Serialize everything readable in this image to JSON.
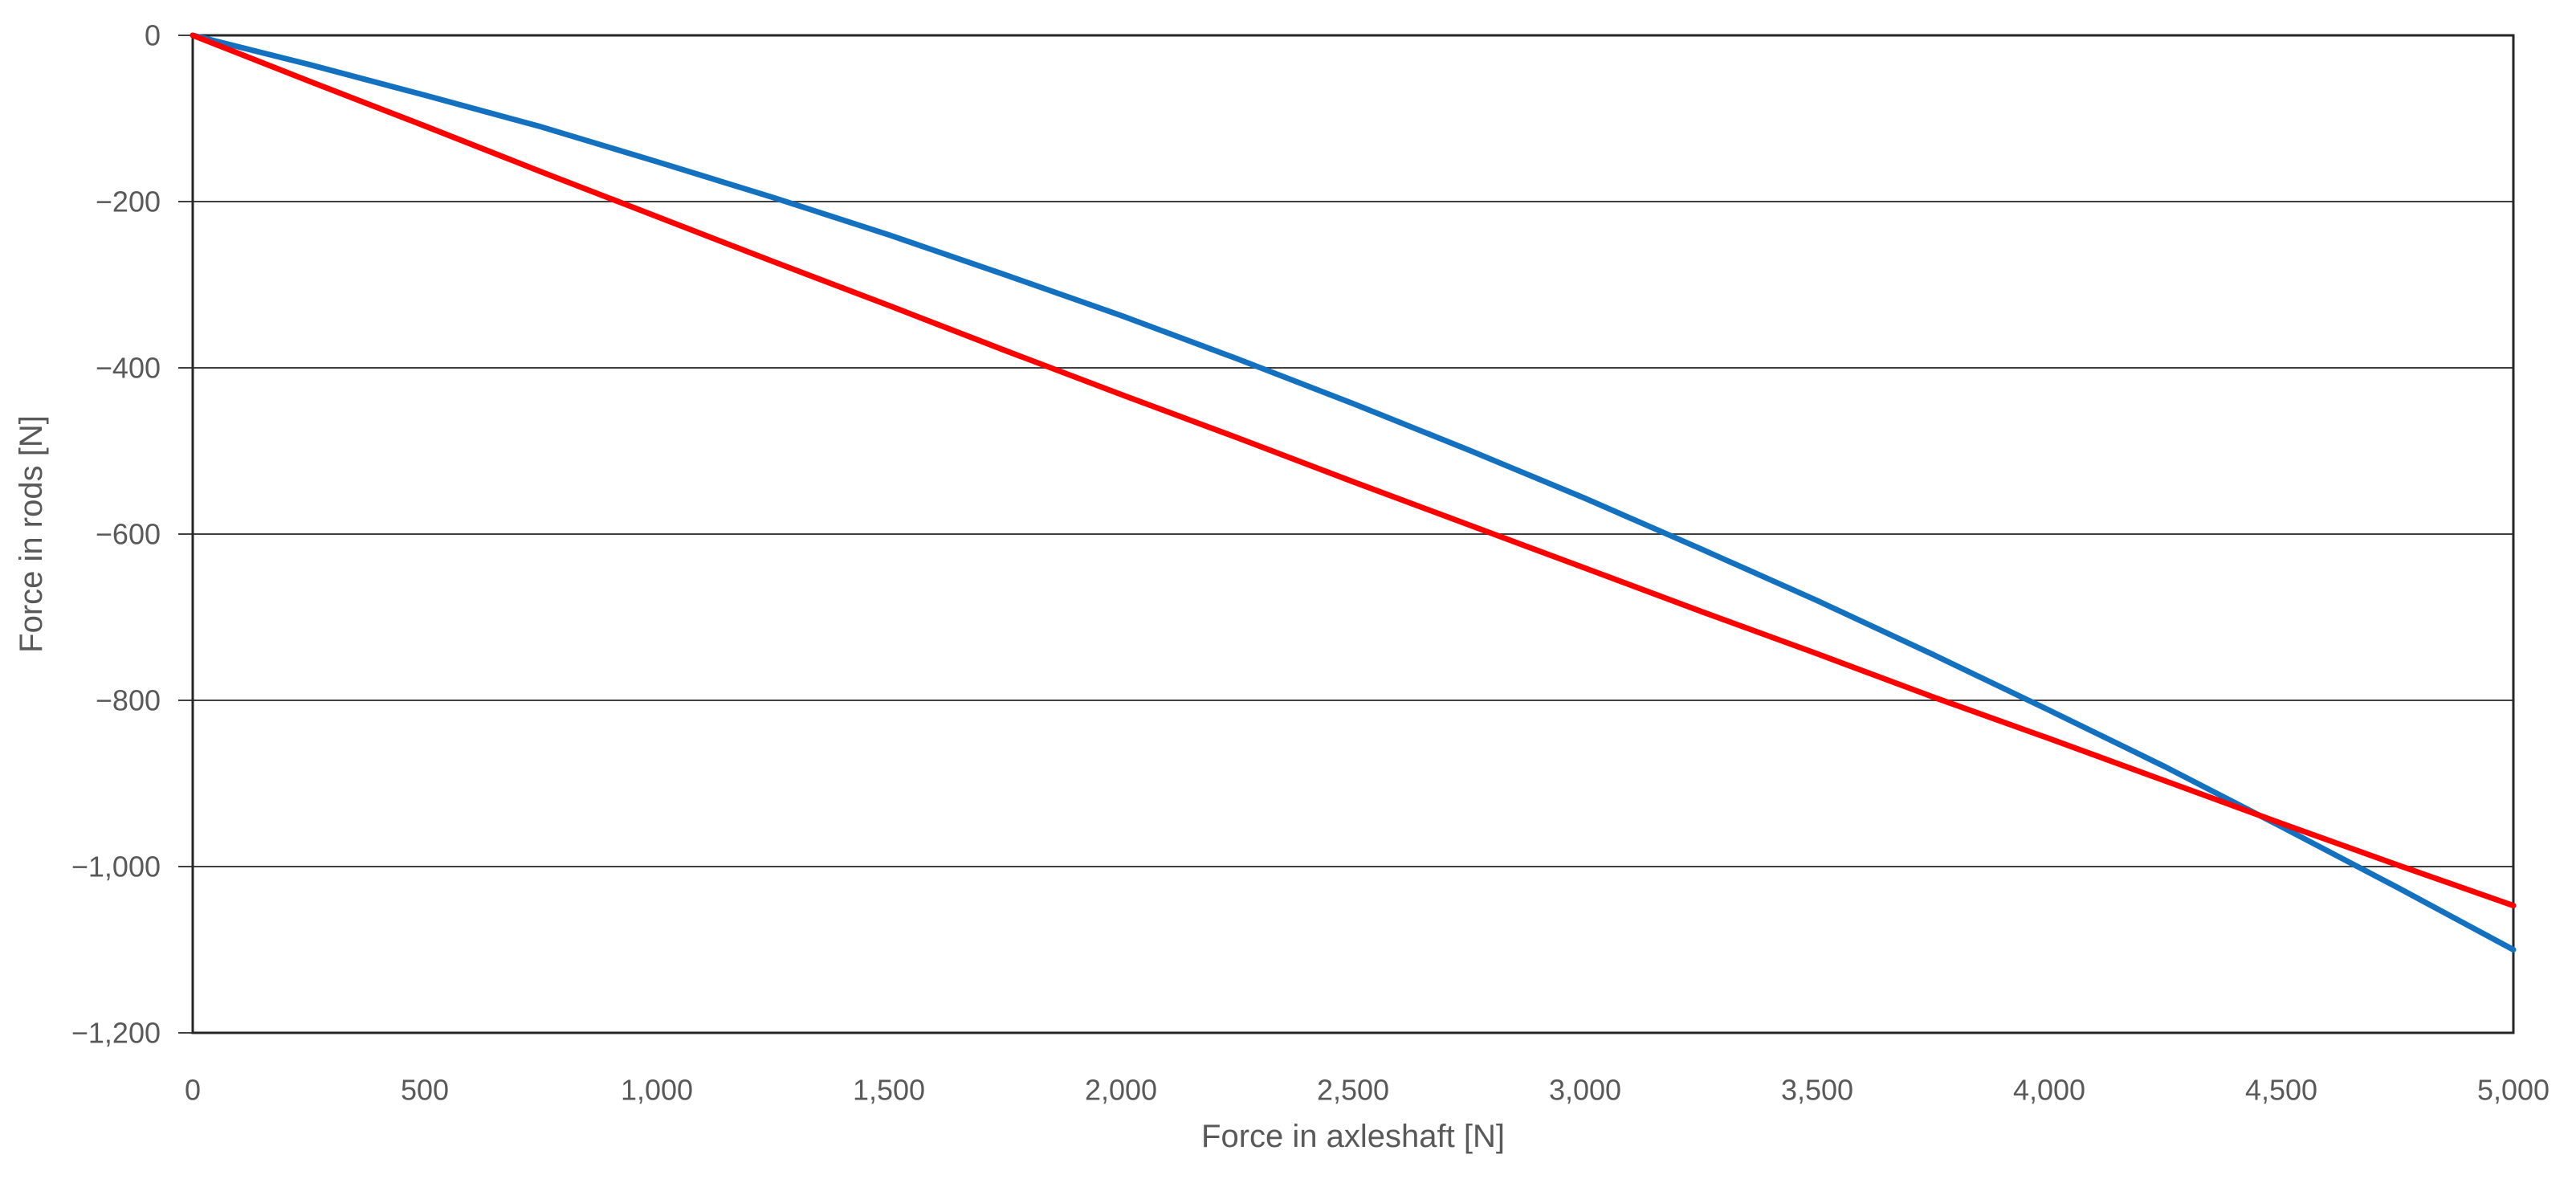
{
  "colors": {
    "background": "#FFFFFF",
    "gridline": "#404040",
    "axis_border": "#262626",
    "tick_text": "#595959",
    "series_blue": "#1471C0",
    "series_red": "#FF0000"
  },
  "chart_data": {
    "type": "line",
    "title": "",
    "xlabel": "Force in axleshaft [N]",
    "ylabel": "Force in rods [N]",
    "xlim": [
      0,
      5000
    ],
    "ylim": [
      -1200,
      0
    ],
    "grid": "horizontal-only",
    "legend": "none",
    "xtick_values": [
      0,
      500,
      1000,
      1500,
      2000,
      2500,
      3000,
      3500,
      4000,
      4500,
      5000
    ],
    "xtick_labels": [
      "0",
      "500",
      "1,000",
      "1,500",
      "2,000",
      "2,500",
      "3,000",
      "3,500",
      "4,000",
      "4,500",
      "5,000"
    ],
    "ytick_values": [
      0,
      -200,
      -400,
      -600,
      -800,
      -1000,
      -1200
    ],
    "ytick_labels": [
      "0",
      "−200",
      "−400",
      "−600",
      "−800",
      "−1,000",
      "−1,200"
    ],
    "x": [
      0,
      250,
      500,
      750,
      1000,
      1250,
      1500,
      1750,
      2000,
      2250,
      2500,
      2750,
      3000,
      3250,
      3500,
      3750,
      4000,
      4250,
      4500,
      4750,
      5000
    ],
    "series": [
      {
        "name": "blue-series",
        "color": "#1471C0",
        "values": [
          0,
          -35,
          -72,
          -110,
          -152,
          -195,
          -240,
          -288,
          -337,
          -389,
          -443,
          -499,
          -557,
          -618,
          -680,
          -745,
          -812,
          -880,
          -952,
          -1025,
          -1100
        ]
      },
      {
        "name": "red-series",
        "color": "#FF0000",
        "values": [
          0,
          -55,
          -109,
          -164,
          -218,
          -272,
          -325,
          -379,
          -432,
          -484,
          -537,
          -589,
          -641,
          -693,
          -744,
          -796,
          -846,
          -897,
          -948,
          -998,
          -1047
        ]
      }
    ]
  }
}
